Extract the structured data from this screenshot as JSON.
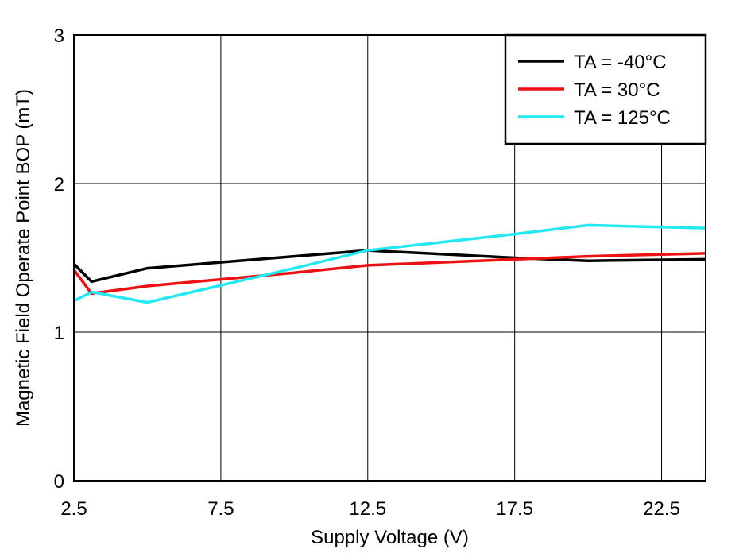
{
  "chart_data": {
    "type": "line",
    "title": "",
    "xlabel": "Supply Voltage (V)",
    "ylabel": "Magnetic Field Operate Point BOP (mT)",
    "xlim": [
      2.5,
      24
    ],
    "ylim": [
      0,
      3
    ],
    "xticks": [
      2.5,
      7.5,
      12.5,
      17.5,
      22.5
    ],
    "xtick_labels": [
      "2.5",
      "7.5",
      "12.5",
      "17.5",
      "22.5"
    ],
    "yticks": [
      0,
      1,
      2,
      3
    ],
    "ytick_labels": [
      "0",
      "1",
      "2",
      "3"
    ],
    "grid": true,
    "legend_position": "top-right",
    "series": [
      {
        "name": "TA = -40°C",
        "color": "#000000",
        "x": [
          2.5,
          3.1,
          5,
          10,
          12.5,
          17.5,
          20,
          24
        ],
        "y": [
          1.46,
          1.34,
          1.43,
          1.51,
          1.55,
          1.5,
          1.48,
          1.49
        ]
      },
      {
        "name": "TA = 30°C",
        "color": "#ee1111",
        "x": [
          2.5,
          3.1,
          5,
          10,
          12.5,
          17.5,
          20,
          24
        ],
        "y": [
          1.42,
          1.26,
          1.31,
          1.4,
          1.45,
          1.49,
          1.51,
          1.53
        ]
      },
      {
        "name": "TA = 125°C",
        "color": "#22e8f2",
        "x": [
          2.5,
          3.1,
          5,
          10,
          12.5,
          17.5,
          20,
          24
        ],
        "y": [
          1.21,
          1.27,
          1.2,
          1.43,
          1.55,
          1.66,
          1.72,
          1.7
        ]
      }
    ]
  }
}
